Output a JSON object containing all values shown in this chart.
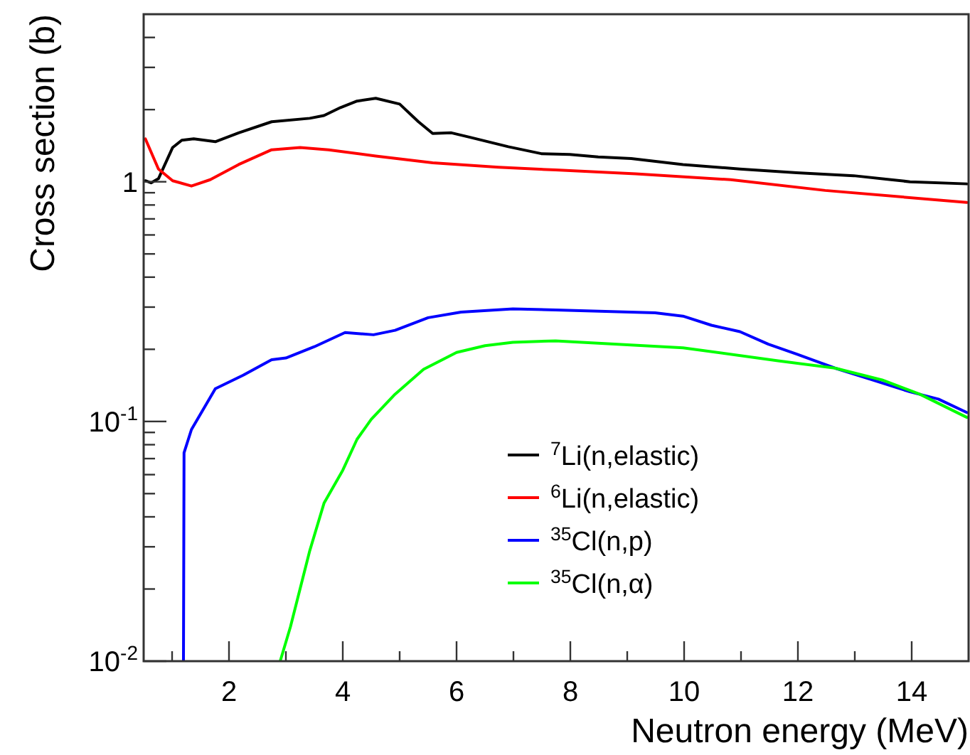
{
  "chart_data": {
    "type": "line",
    "xlabel": "Neutron energy (MeV)",
    "ylabel": "Cross section (b)",
    "log": "y",
    "xlim": [
      0.5,
      15
    ],
    "ylim": [
      0.01,
      5
    ],
    "xticks": [
      {
        "value": 1,
        "label": null
      },
      2,
      {
        "value": 3,
        "label": null
      },
      4,
      {
        "value": 5,
        "label": null
      },
      6,
      {
        "value": 7,
        "label": null
      },
      8,
      {
        "value": 9,
        "label": null
      },
      10,
      {
        "value": 11,
        "label": null
      },
      12,
      {
        "value": 13,
        "label": null
      },
      14
    ],
    "yticks": [
      {
        "value": 0.01,
        "label": "10$^{-2}$"
      },
      {
        "value": 0.02,
        "label": null
      },
      {
        "value": 0.03,
        "label": null
      },
      {
        "value": 0.04,
        "label": null
      },
      {
        "value": 0.05,
        "label": null
      },
      {
        "value": 0.06,
        "label": null
      },
      {
        "value": 0.07,
        "label": null
      },
      {
        "value": 0.08,
        "label": null
      },
      {
        "value": 0.09,
        "label": null
      },
      {
        "value": 0.1,
        "label": "10$^{-1}$"
      },
      {
        "value": 0.2,
        "label": null
      },
      {
        "value": 0.3,
        "label": null
      },
      {
        "value": 0.4,
        "label": null
      },
      {
        "value": 0.5,
        "label": null
      },
      {
        "value": 0.6,
        "label": null
      },
      {
        "value": 0.7,
        "label": null
      },
      {
        "value": 0.8,
        "label": null
      },
      {
        "value": 0.9,
        "label": null
      },
      1,
      {
        "value": 2,
        "label": null
      },
      {
        "value": 3,
        "label": null
      },
      {
        "value": 4,
        "label": null
      }
    ],
    "grid": false,
    "legend": "bottom right",
    "marker": "none",
    "line_style": "solid",
    "series": [
      {
        "name": "$^{7}$Li(n,elastic)",
        "color": "#000000",
        "x": [
          0.53,
          0.63,
          0.76,
          1.01,
          1.17,
          1.38,
          1.76,
          2.17,
          2.75,
          3.42,
          3.67,
          3.96,
          4.25,
          4.58,
          5.0,
          5.33,
          5.58,
          5.91,
          6.25,
          6.91,
          7.49,
          7.99,
          8.49,
          9.07,
          9.98,
          10.98,
          11.98,
          12.98,
          13.97,
          14.97
        ],
        "values": [
          1.01,
          0.99,
          1.03,
          1.39,
          1.49,
          1.51,
          1.47,
          1.6,
          1.78,
          1.84,
          1.89,
          2.04,
          2.17,
          2.23,
          2.11,
          1.78,
          1.59,
          1.6,
          1.53,
          1.4,
          1.31,
          1.3,
          1.27,
          1.25,
          1.18,
          1.13,
          1.09,
          1.06,
          1.0,
          0.98
        ]
      },
      {
        "name": "$^{6}$Li(n,elastic)",
        "color": "#ff0000",
        "x": [
          0.53,
          0.76,
          1.01,
          1.34,
          1.67,
          2.17,
          2.75,
          3.25,
          3.75,
          4.58,
          5.58,
          6.74,
          7.74,
          9.15,
          10.82,
          12.48,
          14.97
        ],
        "values": [
          1.51,
          1.13,
          1.01,
          0.96,
          1.02,
          1.18,
          1.36,
          1.39,
          1.36,
          1.28,
          1.2,
          1.15,
          1.12,
          1.08,
          1.02,
          0.92,
          0.82
        ]
      },
      {
        "name": "$^{35}$Cl(n,p)",
        "color": "#0000ff",
        "x": [
          1.2,
          1.21,
          1.34,
          1.76,
          2.25,
          2.75,
          3.0,
          3.5,
          4.04,
          4.54,
          4.92,
          5.5,
          6.08,
          6.99,
          7.74,
          9.49,
          9.98,
          10.48,
          10.98,
          11.48,
          11.98,
          12.65,
          13.31,
          13.97,
          14.47,
          14.97
        ],
        "values": [
          0.01,
          0.074,
          0.0925,
          0.137,
          0.156,
          0.181,
          0.184,
          0.205,
          0.235,
          0.23,
          0.24,
          0.271,
          0.286,
          0.295,
          0.292,
          0.284,
          0.275,
          0.252,
          0.237,
          0.21,
          0.191,
          0.167,
          0.149,
          0.133,
          0.124,
          0.109
        ]
      },
      {
        "name": "$^{35}$Cl(n,α)",
        "color": "#00ff00",
        "x": [
          2.9,
          3.08,
          3.42,
          3.67,
          4.0,
          4.25,
          4.5,
          4.92,
          5.42,
          6.0,
          6.5,
          6.99,
          7.74,
          9.98,
          11.65,
          12.65,
          13.48,
          14.14,
          14.97
        ],
        "values": [
          0.01,
          0.0139,
          0.0289,
          0.0456,
          0.0626,
          0.0842,
          0.102,
          0.13,
          0.165,
          0.194,
          0.207,
          0.214,
          0.217,
          0.203,
          0.179,
          0.167,
          0.149,
          0.13,
          0.104
        ]
      }
    ]
  }
}
